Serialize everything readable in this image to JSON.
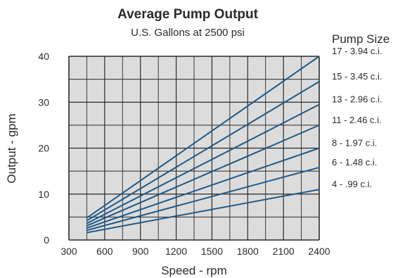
{
  "chart_data": {
    "type": "line",
    "title": "Average Pump Output",
    "subtitle": "U.S. Gallons at 2500 psi",
    "legend_title": "Pump Size",
    "xlabel": "Speed - rpm",
    "ylabel": "Output - gpm",
    "xlim": [
      300,
      2400
    ],
    "ylim": [
      0,
      40
    ],
    "x_ticks": [
      "300",
      "600",
      "900",
      "1200",
      "1500",
      "1800",
      "2100",
      "2400"
    ],
    "y_ticks": [
      "0",
      "10",
      "20",
      "30",
      "40"
    ],
    "grid": true,
    "colors": {
      "plot_bg": "#dcdcdc",
      "grid": "#2a2a2a",
      "line": "#1f5a8a"
    },
    "series": [
      {
        "name": "17 - 3.94 c.i.",
        "x": [
          450,
          2400
        ],
        "y": [
          4.8,
          40
        ]
      },
      {
        "name": "15 - 3.45 c.i.",
        "x": [
          450,
          2400
        ],
        "y": [
          4.2,
          34.5
        ]
      },
      {
        "name": "13 - 2.96 c.i.",
        "x": [
          450,
          2400
        ],
        "y": [
          3.6,
          29.5
        ]
      },
      {
        "name": "11 - 2.46 c.i.",
        "x": [
          450,
          2400
        ],
        "y": [
          3.1,
          25
        ]
      },
      {
        "name": "8 - 1.97 c.i.",
        "x": [
          450,
          2400
        ],
        "y": [
          2.6,
          20
        ]
      },
      {
        "name": "6 - 1.48 c.i.",
        "x": [
          450,
          2400
        ],
        "y": [
          2.1,
          15.8
        ]
      },
      {
        "name": "4 - .99 c.i.",
        "x": [
          450,
          2400
        ],
        "y": [
          1.6,
          11
        ]
      }
    ]
  }
}
